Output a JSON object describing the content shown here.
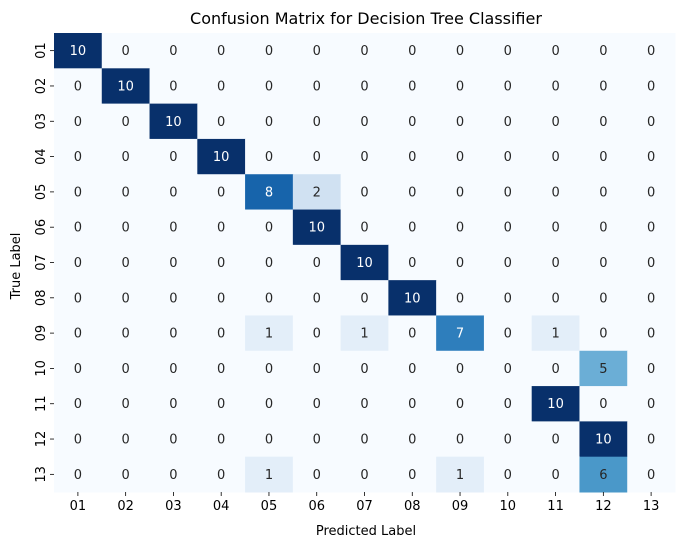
{
  "chart_data": {
    "type": "heatmap",
    "title": "Confusion Matrix for Decision Tree Classifier",
    "xlabel": "Predicted Label",
    "ylabel": "True Label",
    "x_categories": [
      "01",
      "02",
      "03",
      "04",
      "05",
      "06",
      "07",
      "08",
      "09",
      "10",
      "11",
      "12",
      "13"
    ],
    "y_categories": [
      "01",
      "02",
      "03",
      "04",
      "05",
      "06",
      "07",
      "08",
      "09",
      "10",
      "11",
      "12",
      "13"
    ],
    "colormap": "Blues",
    "colorbar": false,
    "vmin": 0,
    "vmax": 10,
    "values": [
      [
        10,
        0,
        0,
        0,
        0,
        0,
        0,
        0,
        0,
        0,
        0,
        0,
        0
      ],
      [
        0,
        10,
        0,
        0,
        0,
        0,
        0,
        0,
        0,
        0,
        0,
        0,
        0
      ],
      [
        0,
        0,
        10,
        0,
        0,
        0,
        0,
        0,
        0,
        0,
        0,
        0,
        0
      ],
      [
        0,
        0,
        0,
        10,
        0,
        0,
        0,
        0,
        0,
        0,
        0,
        0,
        0
      ],
      [
        0,
        0,
        0,
        0,
        8,
        2,
        0,
        0,
        0,
        0,
        0,
        0,
        0
      ],
      [
        0,
        0,
        0,
        0,
        0,
        10,
        0,
        0,
        0,
        0,
        0,
        0,
        0
      ],
      [
        0,
        0,
        0,
        0,
        0,
        0,
        10,
        0,
        0,
        0,
        0,
        0,
        0
      ],
      [
        0,
        0,
        0,
        0,
        0,
        0,
        0,
        10,
        0,
        0,
        0,
        0,
        0
      ],
      [
        0,
        0,
        0,
        0,
        1,
        0,
        1,
        0,
        7,
        0,
        1,
        0,
        0
      ],
      [
        0,
        0,
        0,
        0,
        0,
        0,
        0,
        0,
        0,
        0,
        0,
        5,
        0
      ],
      [
        0,
        0,
        0,
        0,
        0,
        0,
        0,
        0,
        0,
        0,
        10,
        0,
        0
      ],
      [
        0,
        0,
        0,
        0,
        0,
        0,
        0,
        0,
        0,
        0,
        0,
        10,
        0
      ],
      [
        0,
        0,
        0,
        0,
        1,
        0,
        0,
        0,
        1,
        0,
        0,
        6,
        0
      ]
    ]
  }
}
